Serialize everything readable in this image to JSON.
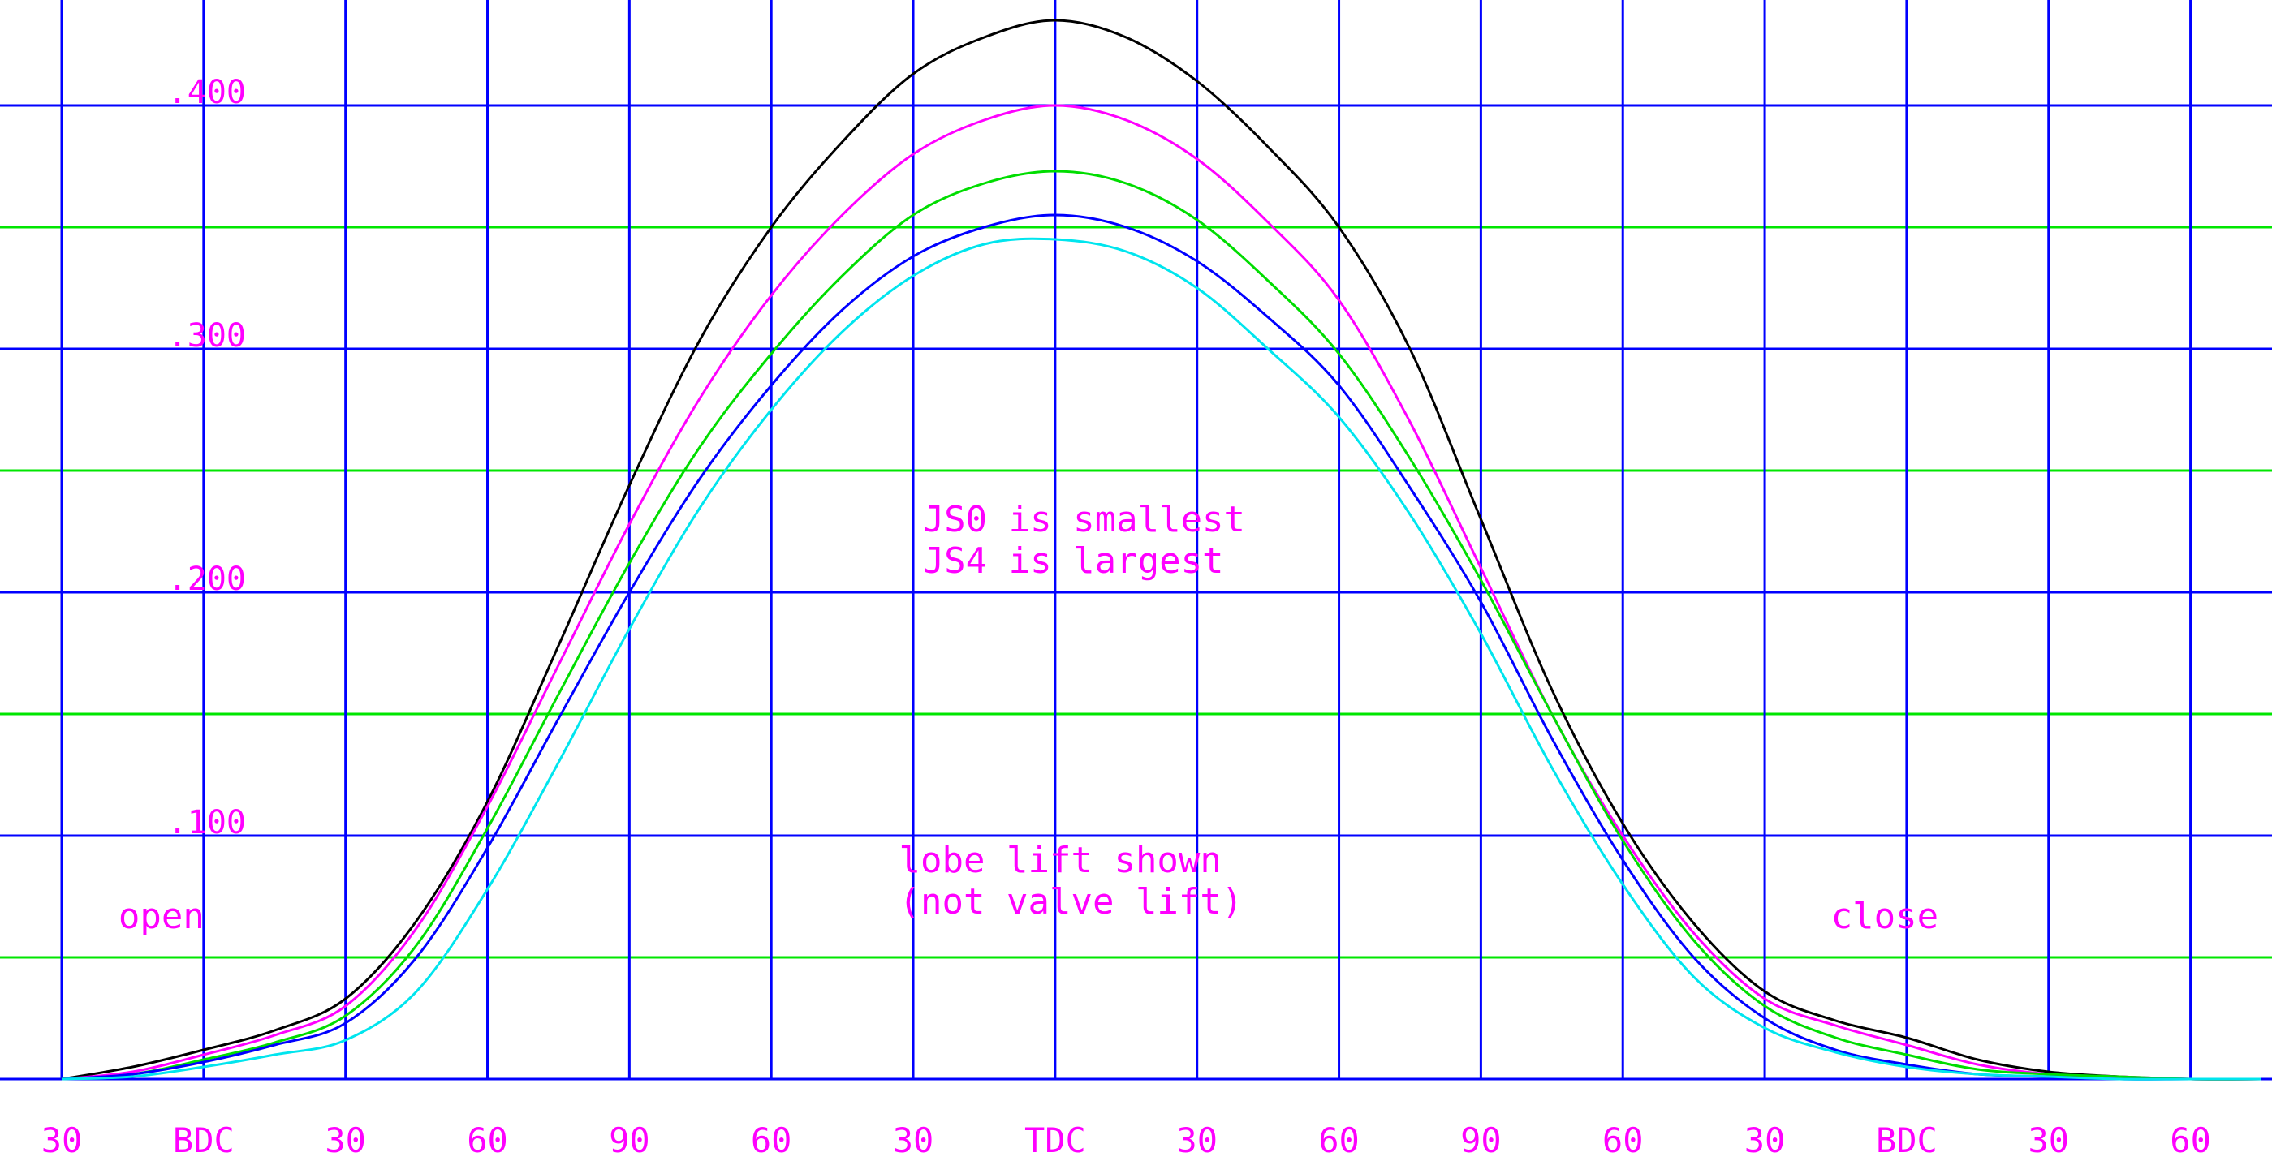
{
  "chart_data": {
    "type": "line",
    "title": "",
    "xlabel": "",
    "ylabel": "",
    "x_unit": "crank degrees",
    "x_range": [
      0,
      930
    ],
    "ylim": [
      0,
      0.44
    ],
    "grid": true,
    "legend": "none",
    "colors": {
      "background": "#ffffff",
      "major_grid": "#0000ff",
      "minor_grid": "#00e600",
      "text": "#ff00ff"
    },
    "x_ticks": [
      {
        "x": 0,
        "label": "30"
      },
      {
        "x": 60,
        "label": "BDC"
      },
      {
        "x": 120,
        "label": "30"
      },
      {
        "x": 180,
        "label": "60"
      },
      {
        "x": 240,
        "label": "90"
      },
      {
        "x": 300,
        "label": "60"
      },
      {
        "x": 360,
        "label": "30"
      },
      {
        "x": 420,
        "label": "TDC"
      },
      {
        "x": 480,
        "label": "30"
      },
      {
        "x": 540,
        "label": "60"
      },
      {
        "x": 600,
        "label": "90"
      },
      {
        "x": 660,
        "label": "60"
      },
      {
        "x": 720,
        "label": "30"
      },
      {
        "x": 780,
        "label": "BDC"
      },
      {
        "x": 840,
        "label": "30"
      },
      {
        "x": 900,
        "label": "60"
      }
    ],
    "y_ticks": [
      {
        "y": 0.1,
        "label": ".100"
      },
      {
        "y": 0.2,
        "label": ".200"
      },
      {
        "y": 0.3,
        "label": ".300"
      },
      {
        "y": 0.4,
        "label": ".400"
      }
    ],
    "y_major_grid": [
      0,
      0.1,
      0.2,
      0.3,
      0.4
    ],
    "y_minor_grid": [
      0.05,
      0.15,
      0.25,
      0.35
    ],
    "annotations": [
      {
        "text": "open",
        "x": 24,
        "y": 0.062
      },
      {
        "text": "JS0 is smallest",
        "x": 364,
        "y": 0.225
      },
      {
        "text": "JS4 is largest",
        "x": 364,
        "y": 0.208
      },
      {
        "text": "lobe lift shown",
        "x": 354,
        "y": 0.085
      },
      {
        "text": "(not valve lift)",
        "x": 354,
        "y": 0.068
      },
      {
        "text": "close",
        "x": 748,
        "y": 0.062
      }
    ],
    "series": [
      {
        "color": "#000000",
        "x": [
          0,
          30,
          60,
          90,
          120,
          150,
          180,
          210,
          240,
          270,
          300,
          330,
          360,
          390,
          420,
          450,
          480,
          510,
          540,
          570,
          600,
          630,
          660,
          690,
          720,
          750,
          780,
          810,
          840,
          870,
          900,
          930
        ],
        "y": [
          0.0,
          0.005,
          0.012,
          0.02,
          0.033,
          0.065,
          0.114,
          0.178,
          0.244,
          0.304,
          0.35,
          0.385,
          0.413,
          0.428,
          0.435,
          0.428,
          0.41,
          0.383,
          0.35,
          0.3,
          0.23,
          0.16,
          0.105,
          0.064,
          0.036,
          0.024,
          0.017,
          0.008,
          0.003,
          0.001,
          0.0,
          0.0
        ]
      },
      {
        "color": "#ff00ff",
        "x": [
          0,
          30,
          60,
          90,
          120,
          150,
          180,
          210,
          240,
          270,
          300,
          330,
          360,
          390,
          420,
          450,
          480,
          510,
          540,
          570,
          600,
          630,
          660,
          690,
          720,
          750,
          780,
          810,
          840,
          870,
          900,
          930
        ],
        "y": [
          0.0,
          0.003,
          0.01,
          0.018,
          0.03,
          0.062,
          0.112,
          0.17,
          0.228,
          0.28,
          0.322,
          0.355,
          0.38,
          0.394,
          0.4,
          0.394,
          0.378,
          0.352,
          0.32,
          0.27,
          0.21,
          0.15,
          0.1,
          0.06,
          0.033,
          0.022,
          0.014,
          0.006,
          0.002,
          0.001,
          0.0,
          0.0
        ]
      },
      {
        "color": "#00dd00",
        "x": [
          0,
          30,
          60,
          90,
          120,
          150,
          180,
          210,
          240,
          270,
          300,
          330,
          360,
          390,
          420,
          450,
          480,
          510,
          540,
          570,
          600,
          630,
          660,
          690,
          720,
          750,
          780,
          810,
          840,
          870,
          900,
          930
        ],
        "y": [
          0.0,
          0.002,
          0.008,
          0.015,
          0.026,
          0.055,
          0.103,
          0.158,
          0.212,
          0.26,
          0.298,
          0.33,
          0.355,
          0.368,
          0.373,
          0.368,
          0.353,
          0.328,
          0.298,
          0.255,
          0.205,
          0.15,
          0.098,
          0.057,
          0.03,
          0.017,
          0.01,
          0.004,
          0.002,
          0.001,
          0.0,
          0.0
        ]
      },
      {
        "color": "#0000ff",
        "x": [
          0,
          30,
          60,
          90,
          120,
          150,
          180,
          210,
          240,
          270,
          300,
          330,
          360,
          390,
          420,
          450,
          480,
          510,
          540,
          570,
          600,
          630,
          660,
          690,
          720,
          750,
          780,
          810,
          840,
          870,
          900,
          930
        ],
        "y": [
          0.0,
          0.002,
          0.007,
          0.014,
          0.023,
          0.05,
          0.095,
          0.148,
          0.2,
          0.247,
          0.285,
          0.316,
          0.338,
          0.35,
          0.355,
          0.35,
          0.336,
          0.313,
          0.285,
          0.243,
          0.196,
          0.14,
          0.09,
          0.05,
          0.025,
          0.012,
          0.006,
          0.002,
          0.001,
          0.0,
          0.0,
          0.0
        ]
      },
      {
        "color": "#00e5ee",
        "x": [
          0,
          30,
          60,
          90,
          120,
          150,
          180,
          210,
          240,
          270,
          300,
          330,
          360,
          390,
          420,
          450,
          480,
          510,
          540,
          570,
          600,
          630,
          660,
          690,
          720,
          750,
          780,
          810,
          840,
          870,
          900,
          930
        ],
        "y": [
          0.0,
          0.001,
          0.005,
          0.01,
          0.016,
          0.036,
          0.078,
          0.13,
          0.185,
          0.235,
          0.275,
          0.307,
          0.33,
          0.343,
          0.345,
          0.34,
          0.325,
          0.3,
          0.272,
          0.232,
          0.183,
          0.128,
          0.08,
          0.042,
          0.021,
          0.011,
          0.005,
          0.002,
          0.001,
          0.0,
          0.0,
          0.0
        ]
      }
    ]
  }
}
